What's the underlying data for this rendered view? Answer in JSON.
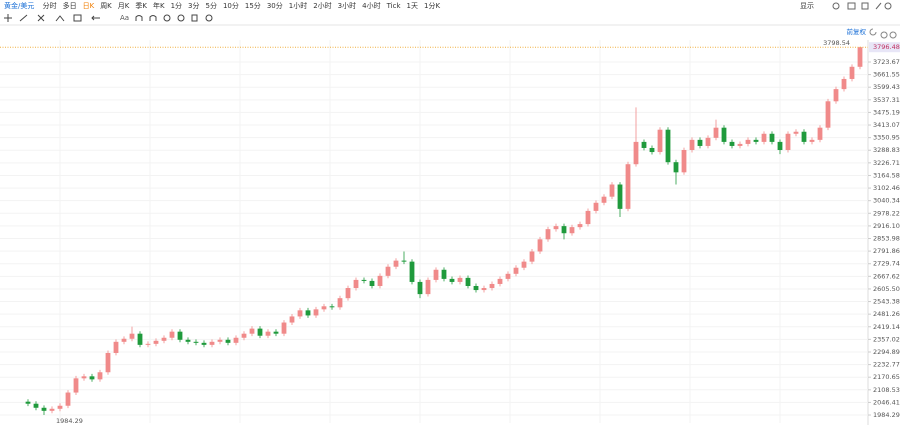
{
  "toolbar": {
    "symbol": "黄金/美元",
    "periods": [
      "分时",
      "多日",
      "日K",
      "周K",
      "月K",
      "季K",
      "年K",
      "1分",
      "3分",
      "5分",
      "10分",
      "15分",
      "30分",
      "1小时",
      "2小时",
      "3小时",
      "4小时",
      "Tick",
      "1天",
      "1分K"
    ],
    "active_period": 2,
    "display": "显示",
    "text_tool": "Aa",
    "adjust": "前复权"
  },
  "chart_data": {
    "type": "candlestick",
    "up_color": "#f08a8a",
    "down_color": "#1f9a3c",
    "grid": true,
    "ylim": [
      1945,
      3832
    ],
    "yticks": [
      1984.29,
      2046.41,
      2108.53,
      2170.65,
      2232.77,
      2294.89,
      2357.02,
      2419.14,
      2481.26,
      2543.38,
      {
        "value": 2605.5,
        "label": "2605.50"
      },
      2667.62,
      2729.74,
      2791.86,
      2853.98,
      {
        "value": 2916.1,
        "label": "2916.10"
      },
      2978.22,
      3040.34,
      3102.46,
      3164.58,
      3226.71,
      3288.83,
      3350.95,
      3413.07,
      3475.19,
      3537.31,
      3599.43,
      3661.55,
      3723.67
    ],
    "open": [
      2050,
      2040,
      2020,
      2005,
      2015,
      2030,
      2095,
      2165,
      2175,
      2160,
      2195,
      2290,
      2345,
      2360,
      2385,
      2330,
      2335,
      2350,
      2365,
      2395,
      2355,
      2345,
      2340,
      2330,
      2345,
      2355,
      2340,
      2365,
      2385,
      2410,
      2375,
      2395,
      2385,
      2440,
      2470,
      2500,
      2475,
      2505,
      2520,
      2515,
      2560,
      2610,
      2650,
      2645,
      2620,
      2670,
      2715,
      2745,
      2740,
      2640,
      2580,
      2650,
      2700,
      2655,
      2640,
      2660,
      2620,
      2600,
      2610,
      2630,
      2655,
      2680,
      2710,
      2740,
      2790,
      2850,
      2900,
      2915,
      2880,
      2910,
      2925,
      2990,
      3030,
      3060,
      3120,
      3000,
      3220,
      3330,
      3300,
      3280,
      3390,
      3230,
      3180,
      3290,
      3340,
      3310,
      3350,
      3400,
      3330,
      3310,
      3320,
      3340,
      3330,
      3370,
      3330,
      3290,
      3370,
      3380,
      3330,
      3340,
      3400,
      3530,
      3590,
      3640,
      3700
    ],
    "high": [
      2062,
      2052,
      2032,
      2027,
      2042,
      2107,
      2177,
      2187,
      2187,
      2207,
      2302,
      2357,
      2372,
      2420,
      2397,
      2347,
      2362,
      2377,
      2407,
      2407,
      2367,
      2357,
      2352,
      2357,
      2367,
      2367,
      2377,
      2397,
      2422,
      2422,
      2407,
      2407,
      2452,
      2482,
      2512,
      2512,
      2517,
      2532,
      2532,
      2572,
      2622,
      2662,
      2662,
      2657,
      2682,
      2727,
      2757,
      2790,
      2752,
      2652,
      2662,
      2712,
      2712,
      2667,
      2672,
      2672,
      2632,
      2622,
      2642,
      2667,
      2692,
      2722,
      2752,
      2802,
      2862,
      2912,
      2927,
      2927,
      2922,
      2937,
      3002,
      3042,
      3072,
      3132,
      3132,
      3232,
      3500,
      3342,
      3312,
      3402,
      3402,
      3242,
      3302,
      3352,
      3352,
      3362,
      3440,
      3412,
      3342,
      3332,
      3352,
      3352,
      3382,
      3382,
      3342,
      3382,
      3392,
      3392,
      3352,
      3412,
      3542,
      3602,
      3652,
      3712,
      3798.54
    ],
    "low": [
      2028,
      2008,
      1984.29,
      1993,
      2003,
      2018,
      2083,
      2153,
      2148,
      2148,
      2183,
      2278,
      2333,
      2348,
      2318,
      2318,
      2323,
      2338,
      2353,
      2343,
      2333,
      2328,
      2318,
      2318,
      2333,
      2328,
      2328,
      2353,
      2373,
      2363,
      2363,
      2373,
      2373,
      2428,
      2458,
      2463,
      2463,
      2493,
      2503,
      2503,
      2548,
      2598,
      2633,
      2608,
      2608,
      2658,
      2703,
      2728,
      2628,
      2560,
      2568,
      2638,
      2643,
      2628,
      2628,
      2608,
      2588,
      2588,
      2598,
      2618,
      2643,
      2668,
      2698,
      2728,
      2778,
      2838,
      2888,
      2850,
      2868,
      2898,
      2913,
      2978,
      3018,
      3048,
      2960,
      2988,
      3208,
      3288,
      3268,
      3268,
      3218,
      3120,
      3168,
      3278,
      3298,
      3298,
      3338,
      3318,
      3298,
      3298,
      3308,
      3318,
      3318,
      3318,
      3270,
      3278,
      3358,
      3318,
      3318,
      3328,
      3388,
      3518,
      3578,
      3628,
      3688
    ],
    "close": [
      2040,
      2020,
      2005,
      2015,
      2030,
      2095,
      2165,
      2175,
      2160,
      2195,
      2290,
      2345,
      2360,
      2385,
      2330,
      2335,
      2350,
      2365,
      2395,
      2355,
      2345,
      2340,
      2330,
      2345,
      2355,
      2340,
      2365,
      2385,
      2410,
      2375,
      2395,
      2385,
      2440,
      2470,
      2500,
      2475,
      2505,
      2520,
      2515,
      2560,
      2610,
      2650,
      2645,
      2620,
      2670,
      2715,
      2745,
      2740,
      2640,
      2580,
      2650,
      2700,
      2655,
      2640,
      2660,
      2620,
      2600,
      2610,
      2630,
      2655,
      2680,
      2710,
      2740,
      2790,
      2850,
      2900,
      2915,
      2880,
      2910,
      2925,
      2990,
      3030,
      3060,
      3120,
      3000,
      3220,
      3330,
      3300,
      3280,
      3390,
      3230,
      3180,
      3290,
      3340,
      3310,
      3350,
      3400,
      3330,
      3310,
      3320,
      3340,
      3330,
      3370,
      3330,
      3290,
      3370,
      3380,
      3330,
      3340,
      3400,
      3530,
      3590,
      3640,
      3700,
      3796.48
    ]
  }
}
